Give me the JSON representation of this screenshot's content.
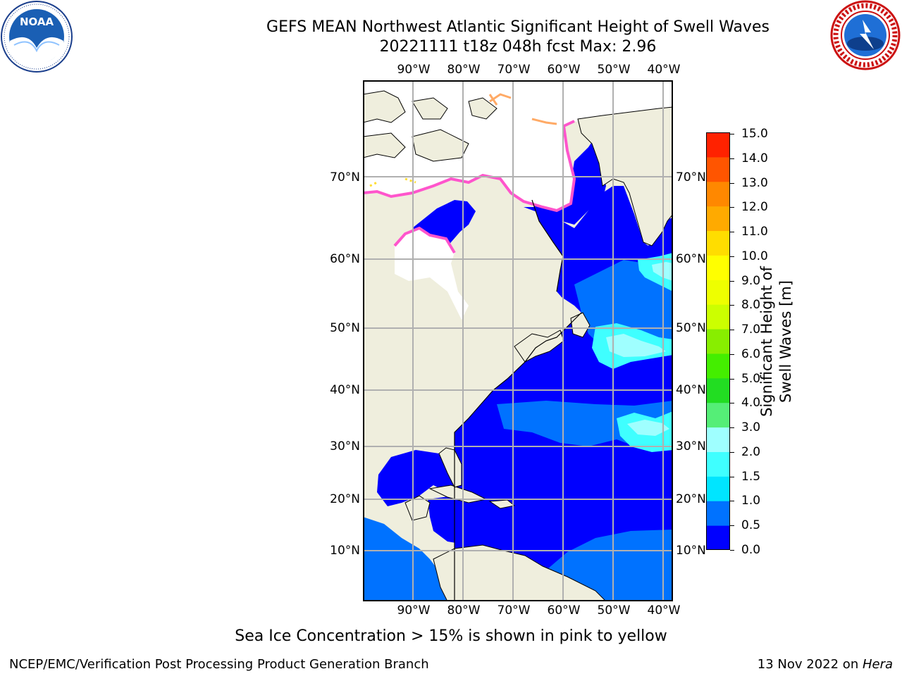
{
  "header": {
    "title_line1": "GEFS MEAN Northwest Atlantic Significant Height of Swell Waves",
    "title_line2": "20221111 t18z 048h fcst   Max: 2.96"
  },
  "logos": {
    "left": {
      "name": "NOAA",
      "ring_text": "NATIONAL OCEANIC AND ATMOSPHERIC ADMINISTRATION · U.S. DEPARTMENT OF COMMERCE"
    },
    "right": {
      "ring_text": "NATIONAL WEATHER SERVICE"
    }
  },
  "map": {
    "lon_labels": [
      "90°W",
      "80°W",
      "70°W",
      "60°W",
      "50°W",
      "40°W"
    ],
    "lat_labels": [
      "70°N",
      "60°N",
      "50°N",
      "40°N",
      "30°N",
      "20°N",
      "10°N"
    ],
    "colors": {
      "land": "#efeedd",
      "ice_white": "#ffffff",
      "ice_edge_pink": "#ff55cc",
      "ice_edge_orange": "#ffaa66",
      "ice_edge_yellow": "#ffdd33",
      "coast": "#000000",
      "grid": "#b0b0b0"
    }
  },
  "colorbar": {
    "label": "Significant Height of Swell Waves [m]",
    "ticks": [
      "15.0",
      "14.0",
      "13.0",
      "12.0",
      "11.0",
      "10.0",
      "9.0",
      "8.0",
      "7.0",
      "6.0",
      "5.0",
      "4.0",
      "3.0",
      "2.0",
      "1.5",
      "1.0",
      "0.5",
      "0.0"
    ],
    "colors_bottom_to_top": [
      "#0000ff",
      "#0072ff",
      "#00e5ff",
      "#3fffff",
      "#9fffff",
      "#55ee77",
      "#22dd22",
      "#44ee00",
      "#88ee00",
      "#ccff00",
      "#eeff00",
      "#ffff00",
      "#ffdd00",
      "#ffaa00",
      "#ff8800",
      "#ff5500",
      "#ff2200",
      "#ff0000"
    ]
  },
  "footer": {
    "note": "Sea Ice Concentration > 15% is shown in pink to yellow",
    "left": "NCEP/EMC/Verification Post Processing Product Generation Branch",
    "right_prefix": "13 Nov 2022 on ",
    "right_host": "Hera"
  }
}
